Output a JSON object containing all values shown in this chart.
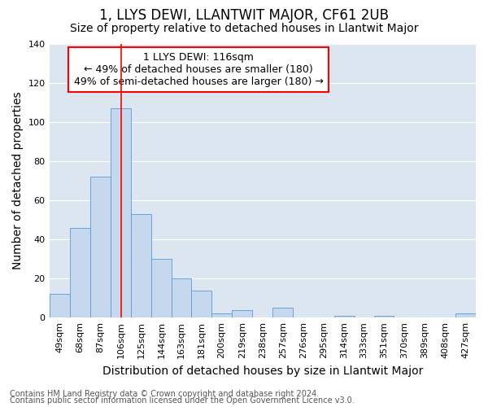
{
  "title": "1, LLYS DEWI, LLANTWIT MAJOR, CF61 2UB",
  "subtitle": "Size of property relative to detached houses in Llantwit Major",
  "xlabel": "Distribution of detached houses by size in Llantwit Major",
  "ylabel": "Number of detached properties",
  "footnote1": "Contains HM Land Registry data © Crown copyright and database right 2024.",
  "footnote2": "Contains public sector information licensed under the Open Government Licence v3.0.",
  "annotation_line1": "1 LLYS DEWI: 116sqm",
  "annotation_line2": "← 49% of detached houses are smaller (180)",
  "annotation_line3": "49% of semi-detached houses are larger (180) →",
  "bar_color": "#c5d8ed",
  "bar_edge_color": "#5b9bd5",
  "red_line_x": 116,
  "categories": [
    "49sqm",
    "68sqm",
    "87sqm",
    "106sqm",
    "125sqm",
    "144sqm",
    "163sqm",
    "181sqm",
    "200sqm",
    "219sqm",
    "238sqm",
    "257sqm",
    "276sqm",
    "295sqm",
    "314sqm",
    "333sqm",
    "351sqm",
    "370sqm",
    "389sqm",
    "408sqm",
    "427sqm"
  ],
  "bin_edges": [
    49,
    68,
    87,
    106,
    125,
    144,
    163,
    181,
    200,
    219,
    238,
    257,
    276,
    295,
    314,
    333,
    351,
    370,
    389,
    408,
    427,
    446
  ],
  "values": [
    12,
    46,
    72,
    107,
    53,
    30,
    20,
    14,
    2,
    4,
    0,
    5,
    0,
    0,
    1,
    0,
    1,
    0,
    0,
    0,
    2
  ],
  "ylim": [
    0,
    140
  ],
  "yticks": [
    0,
    20,
    40,
    60,
    80,
    100,
    120,
    140
  ],
  "grid_color": "#ffffff",
  "bg_color": "#dce6f1",
  "title_fontsize": 12,
  "subtitle_fontsize": 10,
  "axis_label_fontsize": 10,
  "tick_fontsize": 8,
  "annotation_fontsize": 9,
  "footnote_fontsize": 7
}
